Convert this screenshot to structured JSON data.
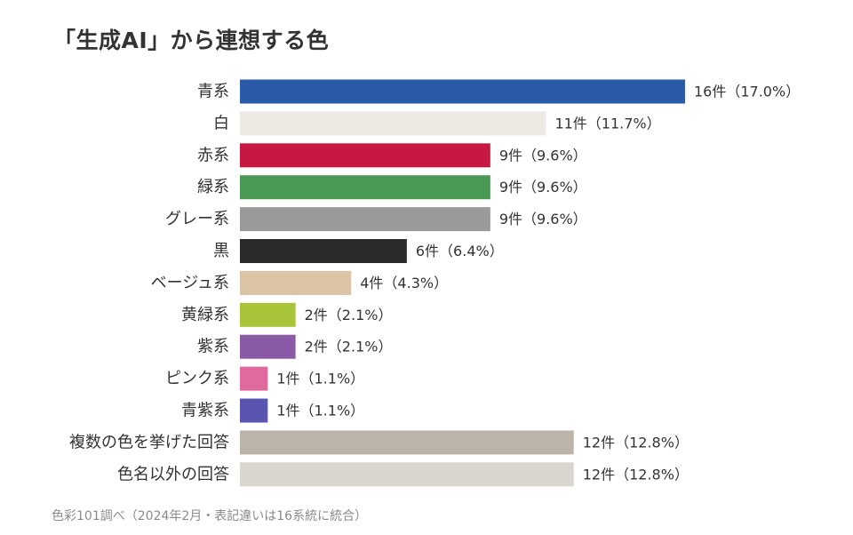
{
  "chart_data": {
    "type": "bar",
    "orientation": "horizontal",
    "title": "「生成AI」から連想する色",
    "note": "色彩101調べ（2024年2月・表記違いは16系統に統合）",
    "categories": [
      "青系",
      "白",
      "赤系",
      "緑系",
      "グレー系",
      "黒",
      "ベージュ系",
      "黄緑系",
      "紫系",
      "ピンク系",
      "青紫系",
      "複数の色を挙げた回答",
      "色名以外の回答"
    ],
    "values": [
      16,
      11,
      9,
      9,
      9,
      6,
      4,
      2,
      2,
      1,
      1,
      12,
      12
    ],
    "data_labels": [
      "16件（17.0%）",
      "11件（11.7%）",
      "9件（9.6%）",
      "9件（9.6%）",
      "9件（9.6%）",
      "6件（6.4%）",
      "4件（4.3%）",
      "2件（2.1%）",
      "2件（2.1%）",
      "1件（1.1%）",
      "1件（1.1%）",
      "12件（12.8%）",
      "12件（12.8%）"
    ],
    "colors": [
      "#2a5aa8",
      "#edeae4",
      "#c71842",
      "#4a9a55",
      "#9a9a9a",
      "#2a2a2a",
      "#dbc4a5",
      "#a8c53a",
      "#8a5aa6",
      "#e06a9e",
      "#5a55b0",
      "#bcb4a8",
      "#d9d5cf"
    ],
    "xlim": [
      0,
      16
    ],
    "grid": false,
    "legend": "none"
  }
}
